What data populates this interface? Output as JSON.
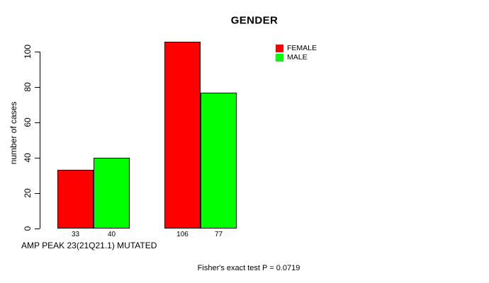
{
  "chart_data": {
    "type": "bar",
    "title": "GENDER",
    "ylabel": "number of cases",
    "xlabel": "AMP PEAK 23(21Q21.1) MUTATED",
    "footnote": "Fisher's exact test P = 0.0719",
    "ylim": [
      0,
      100
    ],
    "yticks": [
      0,
      20,
      40,
      60,
      80,
      100
    ],
    "grid": false,
    "value_labels_shown": true,
    "legend_position": "inside-top-center",
    "groups": [
      "group-1",
      "group-2"
    ],
    "series": [
      {
        "name": "FEMALE",
        "color": "#ff0000",
        "values": [
          33,
          106
        ]
      },
      {
        "name": "MALE",
        "color": "#00ff00",
        "values": [
          40,
          77
        ]
      }
    ],
    "colors": {
      "axis": "#000000",
      "text": "#000000",
      "background": "#ffffff"
    }
  }
}
